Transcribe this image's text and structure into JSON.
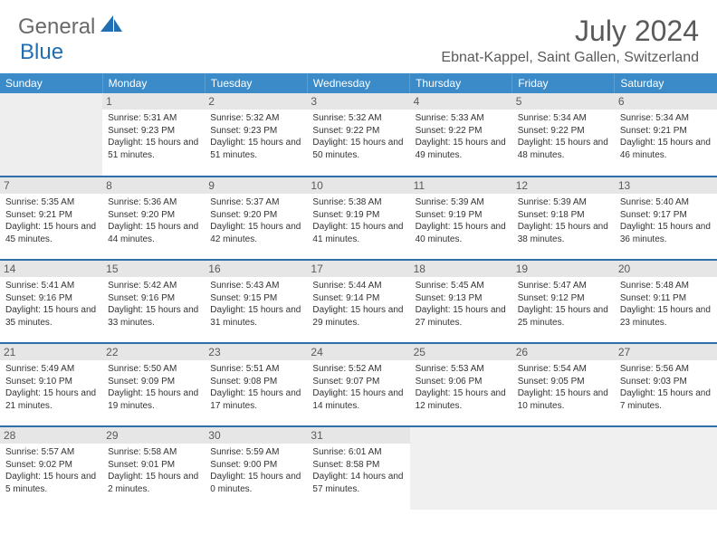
{
  "logo": {
    "part1": "General",
    "part2": "Blue"
  },
  "title": "July 2024",
  "location": "Ebnat-Kappel, Saint Gallen, Switzerland",
  "colors": {
    "header_bg": "#3b8bc9",
    "header_text": "#ffffff",
    "row_border": "#2f6fa8",
    "daynum_bg": "#e6e6e6",
    "text": "#333333",
    "logo_gray": "#6a6a6a",
    "logo_blue": "#1f6fb2"
  },
  "day_headers": [
    "Sunday",
    "Monday",
    "Tuesday",
    "Wednesday",
    "Thursday",
    "Friday",
    "Saturday"
  ],
  "weeks": [
    [
      {
        "n": "",
        "sunrise": "",
        "sunset": "",
        "daylight": ""
      },
      {
        "n": "1",
        "sunrise": "Sunrise: 5:31 AM",
        "sunset": "Sunset: 9:23 PM",
        "daylight": "Daylight: 15 hours and 51 minutes."
      },
      {
        "n": "2",
        "sunrise": "Sunrise: 5:32 AM",
        "sunset": "Sunset: 9:23 PM",
        "daylight": "Daylight: 15 hours and 51 minutes."
      },
      {
        "n": "3",
        "sunrise": "Sunrise: 5:32 AM",
        "sunset": "Sunset: 9:22 PM",
        "daylight": "Daylight: 15 hours and 50 minutes."
      },
      {
        "n": "4",
        "sunrise": "Sunrise: 5:33 AM",
        "sunset": "Sunset: 9:22 PM",
        "daylight": "Daylight: 15 hours and 49 minutes."
      },
      {
        "n": "5",
        "sunrise": "Sunrise: 5:34 AM",
        "sunset": "Sunset: 9:22 PM",
        "daylight": "Daylight: 15 hours and 48 minutes."
      },
      {
        "n": "6",
        "sunrise": "Sunrise: 5:34 AM",
        "sunset": "Sunset: 9:21 PM",
        "daylight": "Daylight: 15 hours and 46 minutes."
      }
    ],
    [
      {
        "n": "7",
        "sunrise": "Sunrise: 5:35 AM",
        "sunset": "Sunset: 9:21 PM",
        "daylight": "Daylight: 15 hours and 45 minutes."
      },
      {
        "n": "8",
        "sunrise": "Sunrise: 5:36 AM",
        "sunset": "Sunset: 9:20 PM",
        "daylight": "Daylight: 15 hours and 44 minutes."
      },
      {
        "n": "9",
        "sunrise": "Sunrise: 5:37 AM",
        "sunset": "Sunset: 9:20 PM",
        "daylight": "Daylight: 15 hours and 42 minutes."
      },
      {
        "n": "10",
        "sunrise": "Sunrise: 5:38 AM",
        "sunset": "Sunset: 9:19 PM",
        "daylight": "Daylight: 15 hours and 41 minutes."
      },
      {
        "n": "11",
        "sunrise": "Sunrise: 5:39 AM",
        "sunset": "Sunset: 9:19 PM",
        "daylight": "Daylight: 15 hours and 40 minutes."
      },
      {
        "n": "12",
        "sunrise": "Sunrise: 5:39 AM",
        "sunset": "Sunset: 9:18 PM",
        "daylight": "Daylight: 15 hours and 38 minutes."
      },
      {
        "n": "13",
        "sunrise": "Sunrise: 5:40 AM",
        "sunset": "Sunset: 9:17 PM",
        "daylight": "Daylight: 15 hours and 36 minutes."
      }
    ],
    [
      {
        "n": "14",
        "sunrise": "Sunrise: 5:41 AM",
        "sunset": "Sunset: 9:16 PM",
        "daylight": "Daylight: 15 hours and 35 minutes."
      },
      {
        "n": "15",
        "sunrise": "Sunrise: 5:42 AM",
        "sunset": "Sunset: 9:16 PM",
        "daylight": "Daylight: 15 hours and 33 minutes."
      },
      {
        "n": "16",
        "sunrise": "Sunrise: 5:43 AM",
        "sunset": "Sunset: 9:15 PM",
        "daylight": "Daylight: 15 hours and 31 minutes."
      },
      {
        "n": "17",
        "sunrise": "Sunrise: 5:44 AM",
        "sunset": "Sunset: 9:14 PM",
        "daylight": "Daylight: 15 hours and 29 minutes."
      },
      {
        "n": "18",
        "sunrise": "Sunrise: 5:45 AM",
        "sunset": "Sunset: 9:13 PM",
        "daylight": "Daylight: 15 hours and 27 minutes."
      },
      {
        "n": "19",
        "sunrise": "Sunrise: 5:47 AM",
        "sunset": "Sunset: 9:12 PM",
        "daylight": "Daylight: 15 hours and 25 minutes."
      },
      {
        "n": "20",
        "sunrise": "Sunrise: 5:48 AM",
        "sunset": "Sunset: 9:11 PM",
        "daylight": "Daylight: 15 hours and 23 minutes."
      }
    ],
    [
      {
        "n": "21",
        "sunrise": "Sunrise: 5:49 AM",
        "sunset": "Sunset: 9:10 PM",
        "daylight": "Daylight: 15 hours and 21 minutes."
      },
      {
        "n": "22",
        "sunrise": "Sunrise: 5:50 AM",
        "sunset": "Sunset: 9:09 PM",
        "daylight": "Daylight: 15 hours and 19 minutes."
      },
      {
        "n": "23",
        "sunrise": "Sunrise: 5:51 AM",
        "sunset": "Sunset: 9:08 PM",
        "daylight": "Daylight: 15 hours and 17 minutes."
      },
      {
        "n": "24",
        "sunrise": "Sunrise: 5:52 AM",
        "sunset": "Sunset: 9:07 PM",
        "daylight": "Daylight: 15 hours and 14 minutes."
      },
      {
        "n": "25",
        "sunrise": "Sunrise: 5:53 AM",
        "sunset": "Sunset: 9:06 PM",
        "daylight": "Daylight: 15 hours and 12 minutes."
      },
      {
        "n": "26",
        "sunrise": "Sunrise: 5:54 AM",
        "sunset": "Sunset: 9:05 PM",
        "daylight": "Daylight: 15 hours and 10 minutes."
      },
      {
        "n": "27",
        "sunrise": "Sunrise: 5:56 AM",
        "sunset": "Sunset: 9:03 PM",
        "daylight": "Daylight: 15 hours and 7 minutes."
      }
    ],
    [
      {
        "n": "28",
        "sunrise": "Sunrise: 5:57 AM",
        "sunset": "Sunset: 9:02 PM",
        "daylight": "Daylight: 15 hours and 5 minutes."
      },
      {
        "n": "29",
        "sunrise": "Sunrise: 5:58 AM",
        "sunset": "Sunset: 9:01 PM",
        "daylight": "Daylight: 15 hours and 2 minutes."
      },
      {
        "n": "30",
        "sunrise": "Sunrise: 5:59 AM",
        "sunset": "Sunset: 9:00 PM",
        "daylight": "Daylight: 15 hours and 0 minutes."
      },
      {
        "n": "31",
        "sunrise": "Sunrise: 6:01 AM",
        "sunset": "Sunset: 8:58 PM",
        "daylight": "Daylight: 14 hours and 57 minutes."
      },
      {
        "n": "",
        "sunrise": "",
        "sunset": "",
        "daylight": ""
      },
      {
        "n": "",
        "sunrise": "",
        "sunset": "",
        "daylight": ""
      },
      {
        "n": "",
        "sunrise": "",
        "sunset": "",
        "daylight": ""
      }
    ]
  ]
}
